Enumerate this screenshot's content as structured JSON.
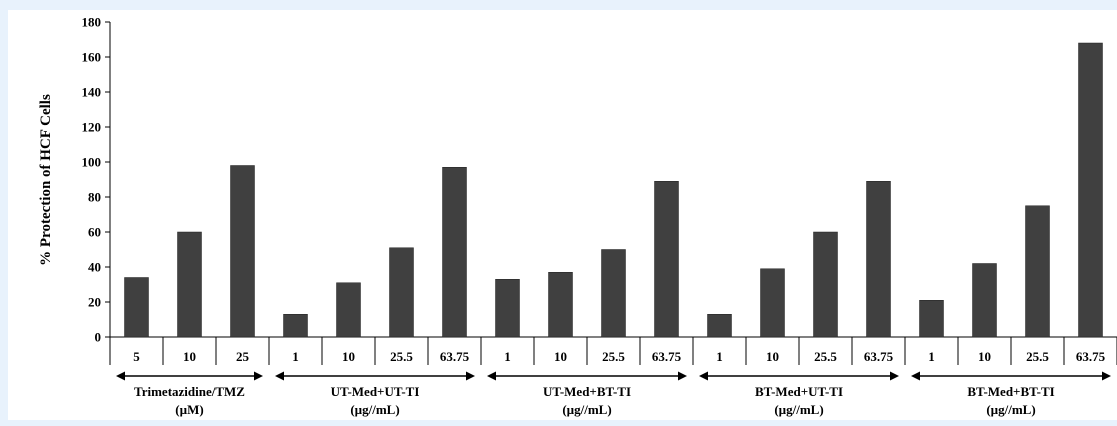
{
  "chart_data": {
    "type": "bar",
    "ylabel": "% Protection of HCF Cells",
    "ylim": [
      0,
      180
    ],
    "yticks": [
      0,
      20,
      40,
      60,
      80,
      100,
      120,
      140,
      160,
      180
    ],
    "grid": false,
    "bar_color": "#404040",
    "groups": [
      {
        "label_line1": "Trimetazidine/TMZ",
        "label_line2": "(µM)",
        "categories": [
          "5",
          "10",
          "25"
        ],
        "values": [
          34,
          60,
          98
        ]
      },
      {
        "label_line1": "UT-Med+UT-TI",
        "label_line2": "(µg//mL)",
        "categories": [
          "1",
          "10",
          "25.5",
          "63.75"
        ],
        "values": [
          13,
          31,
          51,
          97
        ]
      },
      {
        "label_line1": "UT-Med+BT-TI",
        "label_line2": "(µg//mL)",
        "categories": [
          "1",
          "10",
          "25.5",
          "63.75"
        ],
        "values": [
          33,
          37,
          50,
          89
        ]
      },
      {
        "label_line1": "BT-Med+UT-TI",
        "label_line2": "(µg//mL)",
        "categories": [
          "1",
          "10",
          "25.5",
          "63.75"
        ],
        "values": [
          13,
          39,
          60,
          89
        ]
      },
      {
        "label_line1": "BT-Med+BT-TI",
        "label_line2": "(µg//mL)",
        "categories": [
          "1",
          "10",
          "25.5",
          "63.75"
        ],
        "values": [
          21,
          42,
          75,
          168
        ]
      }
    ]
  }
}
